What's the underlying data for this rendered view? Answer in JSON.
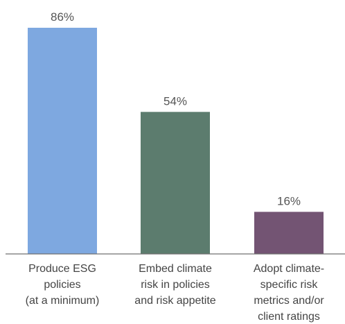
{
  "chart_data": {
    "type": "bar",
    "categories": [
      [
        "Produce ESG",
        "policies",
        "(at a minimum)"
      ],
      [
        "Embed climate",
        "risk in policies",
        "and risk appetite"
      ],
      [
        "Adopt climate-",
        "specific risk",
        "metrics and/or",
        "client ratings"
      ]
    ],
    "values": [
      86,
      54,
      16
    ],
    "value_labels": [
      "86%",
      "54%",
      "16%"
    ],
    "bar_colors": [
      "#7ea8e0",
      "#5c7c6e",
      "#735473"
    ],
    "ylim": [
      0,
      100
    ],
    "grid": false,
    "title": "",
    "xlabel": "",
    "ylabel": ""
  }
}
